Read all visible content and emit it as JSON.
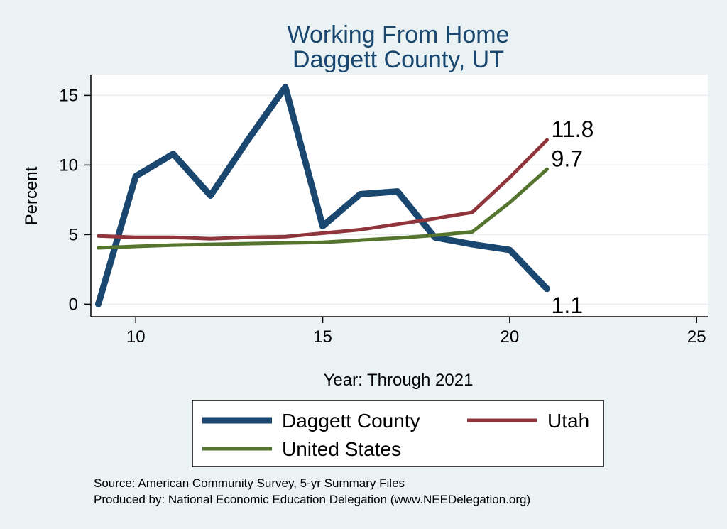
{
  "chart_data": {
    "type": "line",
    "title": [
      "Working From Home",
      "Daggett County, UT"
    ],
    "xlabel": "Year: Through 2021",
    "ylabel": "Percent",
    "xlim": [
      8.8,
      25.3
    ],
    "ylim": [
      -0.9,
      16.5
    ],
    "xticks": [
      10,
      15,
      20,
      25
    ],
    "yticks": [
      0,
      5,
      10,
      15
    ],
    "grid": true,
    "legend_position": "bottom",
    "series": [
      {
        "name": "Daggett County",
        "color": "#1a476f",
        "x": [
          9,
          10,
          11,
          12,
          13,
          14,
          15,
          16,
          17,
          18,
          19,
          20,
          21
        ],
        "values": [
          0,
          9.2,
          10.8,
          7.8,
          11.8,
          15.6,
          5.6,
          7.9,
          8.1,
          4.8,
          4.3,
          3.9,
          1.1
        ],
        "end_label": "1.1"
      },
      {
        "name": "Utah",
        "color": "#90353b",
        "x": [
          9,
          10,
          11,
          12,
          13,
          14,
          15,
          16,
          17,
          18,
          19,
          20,
          21
        ],
        "values": [
          4.9,
          4.8,
          4.8,
          4.7,
          4.8,
          4.85,
          5.1,
          5.35,
          5.75,
          6.15,
          6.6,
          9.1,
          11.8
        ],
        "end_label": "11.8"
      },
      {
        "name": "United States",
        "color": "#55752f",
        "x": [
          9,
          10,
          11,
          12,
          13,
          14,
          15,
          16,
          17,
          18,
          19,
          20,
          21
        ],
        "values": [
          4.05,
          4.15,
          4.25,
          4.3,
          4.35,
          4.4,
          4.45,
          4.6,
          4.75,
          4.95,
          5.2,
          7.3,
          9.7
        ],
        "end_label": "9.7"
      }
    ],
    "notes": [
      "Source: American Community Survey, 5-yr Summary Files",
      "Produced by: National Economic Education Delegation (www.NEEDelegation.org)"
    ]
  }
}
